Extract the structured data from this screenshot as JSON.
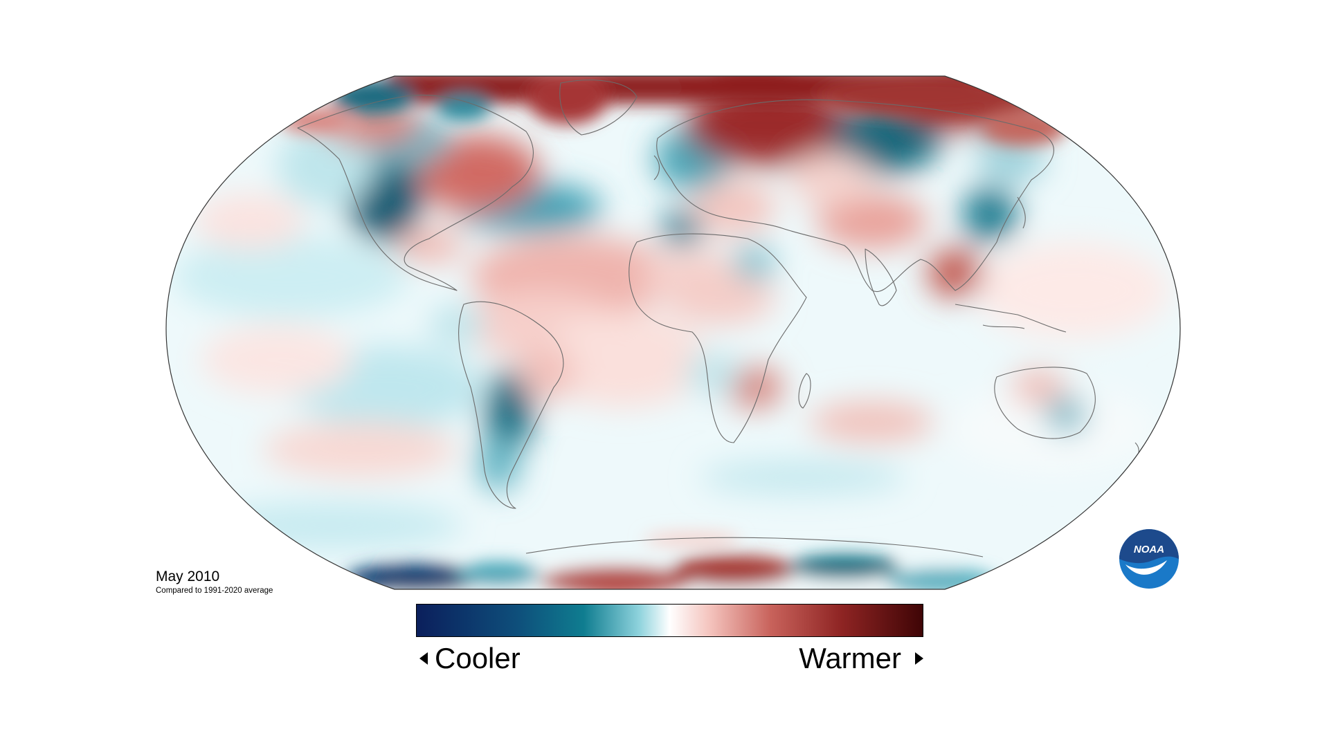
{
  "map": {
    "date": "May 2010",
    "baseline": "Compared to 1991-2020 average"
  },
  "legend": {
    "cooler_label": "Cooler",
    "warmer_label": "Warmer",
    "colors": [
      "#0b1f5c",
      "#0e6e84",
      "#bfe9ef",
      "#ffffff",
      "#f2b8b2",
      "#b5453f",
      "#4a0607"
    ]
  },
  "logo": {
    "text": "NOAA",
    "colors": [
      "#1d4a8c",
      "#1a79c8",
      "#ffffff"
    ]
  },
  "colors": {
    "warm_strong": "#8e1c1c",
    "warm": "#c9605a",
    "warm_light": "#efb7b0",
    "neutral": "#ffffff",
    "cool_light": "#bfe8ed",
    "cool": "#4aa6b7",
    "cool_strong": "#0f5c73",
    "cool_deep": "#0b2a62"
  }
}
